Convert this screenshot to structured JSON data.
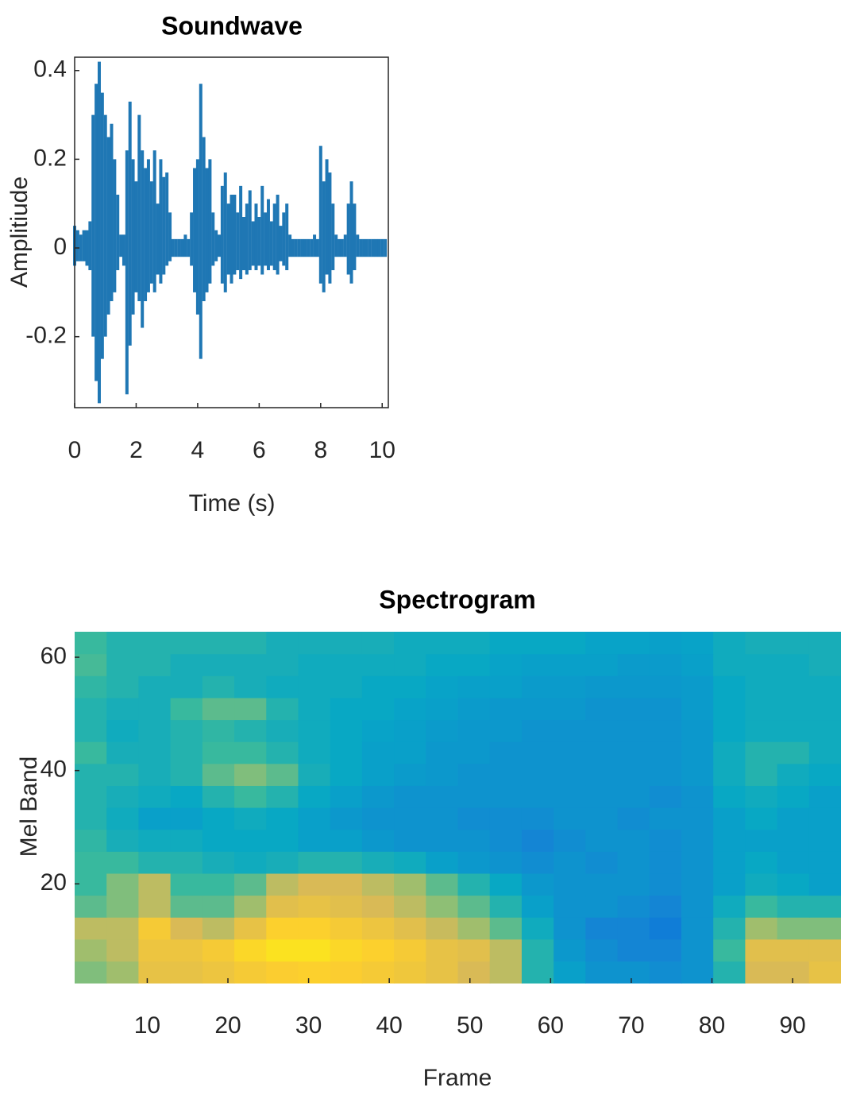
{
  "chart_data": [
    {
      "type": "waveform",
      "title": "Soundwave",
      "x_label": "Time (s)",
      "y_label": "Amplitiude",
      "xlim": [
        0,
        10.2
      ],
      "ylim": [
        -0.36,
        0.43
      ],
      "xticks": [
        0,
        2,
        4,
        6,
        8,
        10
      ],
      "yticks": [
        -0.2,
        0,
        0.2,
        0.4
      ],
      "x": [
        0,
        0.1,
        0.2,
        0.3,
        0.4,
        0.5,
        0.6,
        0.7,
        0.8,
        0.9,
        1,
        1.1,
        1.2,
        1.3,
        1.4,
        1.5,
        1.6,
        1.7,
        1.8,
        1.9,
        2,
        2.1,
        2.2,
        2.3,
        2.4,
        2.5,
        2.6,
        2.7,
        2.8,
        2.9,
        3,
        3.1,
        3.2,
        3.3,
        3.4,
        3.5,
        3.6,
        3.7,
        3.8,
        3.9,
        4,
        4.1,
        4.2,
        4.3,
        4.4,
        4.5,
        4.6,
        4.7,
        4.8,
        4.9,
        5,
        5.1,
        5.2,
        5.3,
        5.4,
        5.5,
        5.6,
        5.7,
        5.8,
        5.9,
        6,
        6.1,
        6.2,
        6.3,
        6.4,
        6.5,
        6.6,
        6.7,
        6.8,
        6.9,
        7,
        7.1,
        7.2,
        7.3,
        7.4,
        7.5,
        7.6,
        7.7,
        7.8,
        7.9,
        8,
        8.1,
        8.2,
        8.3,
        8.4,
        8.5,
        8.6,
        8.7,
        8.8,
        8.9,
        9,
        9.1,
        9.2,
        9.3,
        9.4,
        9.5,
        9.6,
        9.7,
        9.8,
        9.9,
        10,
        10.1
      ],
      "series": [
        {
          "color": "#1f77b4",
          "values": [
            0.05,
            0.04,
            0.03,
            0.04,
            0.04,
            0.06,
            0.3,
            0.37,
            0.42,
            0.35,
            0.3,
            0.25,
            0.28,
            0.2,
            0.12,
            0.03,
            0.03,
            0.22,
            0.33,
            0.2,
            0.15,
            0.3,
            0.22,
            0.18,
            0.2,
            0.15,
            0.22,
            0.1,
            0.2,
            0.16,
            0.17,
            0.08,
            0.02,
            0.02,
            0.02,
            0.02,
            0.03,
            0.02,
            0.08,
            0.18,
            0.2,
            0.37,
            0.25,
            0.18,
            0.2,
            0.08,
            0.04,
            0.03,
            0.14,
            0.17,
            0.1,
            0.12,
            0.12,
            0.08,
            0.14,
            0.07,
            0.1,
            0.13,
            0.06,
            0.1,
            0.07,
            0.14,
            0.08,
            0.11,
            0.06,
            0.1,
            0.12,
            0.05,
            0.08,
            0.1,
            0.03,
            0.02,
            0.02,
            0.02,
            0.02,
            0.02,
            0.02,
            0.02,
            0.03,
            0.02,
            0.23,
            0.15,
            0.2,
            0.17,
            0.1,
            0.03,
            0.02,
            0.02,
            0.03,
            0.1,
            0.15,
            0.1,
            0.03,
            0.02,
            0.02,
            0.02,
            0.02,
            0.02,
            0.02,
            0.02,
            0.02,
            0.02
          ]
        },
        {
          "color": "#1f77b4",
          "values": [
            -0.04,
            -0.03,
            -0.03,
            -0.03,
            -0.04,
            -0.05,
            -0.2,
            -0.3,
            -0.35,
            -0.25,
            -0.2,
            -0.15,
            -0.12,
            -0.1,
            -0.05,
            -0.02,
            -0.04,
            -0.33,
            -0.22,
            -0.15,
            -0.1,
            -0.12,
            -0.18,
            -0.12,
            -0.1,
            -0.08,
            -0.1,
            -0.06,
            -0.08,
            -0.06,
            -0.04,
            -0.03,
            -0.02,
            -0.02,
            -0.02,
            -0.02,
            -0.02,
            -0.02,
            -0.04,
            -0.1,
            -0.15,
            -0.25,
            -0.12,
            -0.1,
            -0.08,
            -0.04,
            -0.03,
            -0.02,
            -0.08,
            -0.1,
            -0.06,
            -0.08,
            -0.06,
            -0.05,
            -0.07,
            -0.05,
            -0.06,
            -0.05,
            -0.04,
            -0.05,
            -0.04,
            -0.06,
            -0.04,
            -0.05,
            -0.04,
            -0.05,
            -0.06,
            -0.03,
            -0.04,
            -0.05,
            -0.02,
            -0.02,
            -0.02,
            -0.02,
            -0.02,
            -0.02,
            -0.02,
            -0.02,
            -0.02,
            -0.02,
            -0.08,
            -0.1,
            -0.06,
            -0.08,
            -0.05,
            -0.02,
            -0.02,
            -0.02,
            -0.02,
            -0.06,
            -0.08,
            -0.05,
            -0.02,
            -0.02,
            -0.02,
            -0.02,
            -0.02,
            -0.02,
            -0.02,
            -0.02,
            -0.02,
            -0.02
          ]
        }
      ]
    },
    {
      "type": "heatmap",
      "title": "Spectrogram",
      "x_label": "Frame",
      "y_label": "Mel Band",
      "xlim": [
        1,
        96
      ],
      "ylim": [
        2.5,
        64.5
      ],
      "xticks": [
        10,
        20,
        30,
        40,
        50,
        60,
        70,
        80,
        90
      ],
      "yticks": [
        20,
        40,
        60
      ],
      "colormap": [
        "#352a87",
        "#0363e1",
        "#1485d4",
        "#06a7c6",
        "#38b99e",
        "#92bf73",
        "#d9ba56",
        "#fcce2e",
        "#f9fb0e"
      ],
      "values": [
        [
          0.6,
          0.65,
          0.8,
          0.8,
          0.82,
          0.85,
          0.87,
          0.88,
          0.87,
          0.85,
          0.83,
          0.8,
          0.75,
          0.7,
          0.45,
          0.35,
          0.3,
          0.3,
          0.28,
          0.3,
          0.45,
          0.75,
          0.75,
          0.8
        ],
        [
          0.65,
          0.7,
          0.82,
          0.82,
          0.85,
          0.9,
          0.93,
          0.93,
          0.9,
          0.88,
          0.85,
          0.8,
          0.78,
          0.7,
          0.45,
          0.32,
          0.28,
          0.25,
          0.25,
          0.3,
          0.5,
          0.78,
          0.78,
          0.78
        ],
        [
          0.7,
          0.7,
          0.85,
          0.75,
          0.7,
          0.8,
          0.88,
          0.88,
          0.85,
          0.82,
          0.78,
          0.72,
          0.65,
          0.55,
          0.4,
          0.3,
          0.25,
          0.25,
          0.22,
          0.3,
          0.45,
          0.65,
          0.6,
          0.6
        ],
        [
          0.55,
          0.6,
          0.7,
          0.55,
          0.55,
          0.65,
          0.78,
          0.8,
          0.78,
          0.75,
          0.7,
          0.62,
          0.55,
          0.45,
          0.35,
          0.3,
          0.3,
          0.28,
          0.25,
          0.3,
          0.4,
          0.5,
          0.45,
          0.45
        ],
        [
          0.5,
          0.6,
          0.7,
          0.5,
          0.5,
          0.55,
          0.7,
          0.75,
          0.75,
          0.7,
          0.65,
          0.55,
          0.45,
          0.38,
          0.32,
          0.3,
          0.3,
          0.3,
          0.28,
          0.3,
          0.35,
          0.4,
          0.38,
          0.35
        ],
        [
          0.5,
          0.5,
          0.45,
          0.45,
          0.42,
          0.4,
          0.42,
          0.45,
          0.45,
          0.42,
          0.4,
          0.35,
          0.32,
          0.3,
          0.28,
          0.3,
          0.28,
          0.3,
          0.28,
          0.3,
          0.35,
          0.38,
          0.35,
          0.35
        ],
        [
          0.48,
          0.42,
          0.4,
          0.4,
          0.38,
          0.38,
          0.38,
          0.35,
          0.35,
          0.32,
          0.3,
          0.3,
          0.3,
          0.28,
          0.25,
          0.28,
          0.3,
          0.3,
          0.28,
          0.3,
          0.35,
          0.35,
          0.35,
          0.35
        ],
        [
          0.45,
          0.4,
          0.35,
          0.35,
          0.38,
          0.4,
          0.38,
          0.35,
          0.32,
          0.3,
          0.3,
          0.3,
          0.28,
          0.28,
          0.28,
          0.3,
          0.3,
          0.28,
          0.3,
          0.3,
          0.35,
          0.38,
          0.35,
          0.35
        ],
        [
          0.45,
          0.42,
          0.4,
          0.38,
          0.45,
          0.5,
          0.45,
          0.38,
          0.35,
          0.32,
          0.3,
          0.3,
          0.3,
          0.3,
          0.3,
          0.3,
          0.3,
          0.3,
          0.28,
          0.3,
          0.38,
          0.4,
          0.38,
          0.35
        ],
        [
          0.45,
          0.45,
          0.42,
          0.45,
          0.55,
          0.6,
          0.55,
          0.42,
          0.38,
          0.35,
          0.33,
          0.32,
          0.3,
          0.3,
          0.3,
          0.3,
          0.3,
          0.3,
          0.3,
          0.32,
          0.4,
          0.45,
          0.4,
          0.38
        ],
        [
          0.5,
          0.42,
          0.42,
          0.45,
          0.5,
          0.5,
          0.45,
          0.4,
          0.38,
          0.35,
          0.35,
          0.32,
          0.32,
          0.3,
          0.3,
          0.3,
          0.3,
          0.3,
          0.3,
          0.32,
          0.4,
          0.45,
          0.45,
          0.4
        ],
        [
          0.45,
          0.4,
          0.42,
          0.45,
          0.48,
          0.45,
          0.42,
          0.4,
          0.38,
          0.36,
          0.35,
          0.33,
          0.32,
          0.32,
          0.3,
          0.3,
          0.3,
          0.3,
          0.3,
          0.32,
          0.38,
          0.4,
          0.4,
          0.4
        ],
        [
          0.45,
          0.42,
          0.42,
          0.5,
          0.55,
          0.55,
          0.45,
          0.4,
          0.38,
          0.38,
          0.36,
          0.35,
          0.33,
          0.32,
          0.32,
          0.32,
          0.3,
          0.3,
          0.3,
          0.33,
          0.38,
          0.4,
          0.4,
          0.4
        ],
        [
          0.48,
          0.45,
          0.42,
          0.42,
          0.45,
          0.42,
          0.4,
          0.4,
          0.4,
          0.38,
          0.38,
          0.36,
          0.35,
          0.35,
          0.33,
          0.33,
          0.32,
          0.32,
          0.32,
          0.33,
          0.38,
          0.4,
          0.4,
          0.4
        ],
        [
          0.52,
          0.45,
          0.45,
          0.42,
          0.42,
          0.42,
          0.42,
          0.4,
          0.4,
          0.4,
          0.4,
          0.38,
          0.38,
          0.36,
          0.35,
          0.35,
          0.35,
          0.33,
          0.33,
          0.35,
          0.4,
          0.4,
          0.4,
          0.42
        ],
        [
          0.5,
          0.45,
          0.45,
          0.45,
          0.45,
          0.45,
          0.42,
          0.42,
          0.42,
          0.42,
          0.4,
          0.4,
          0.4,
          0.38,
          0.38,
          0.38,
          0.36,
          0.36,
          0.35,
          0.36,
          0.4,
          0.42,
          0.42,
          0.42
        ]
      ]
    }
  ]
}
